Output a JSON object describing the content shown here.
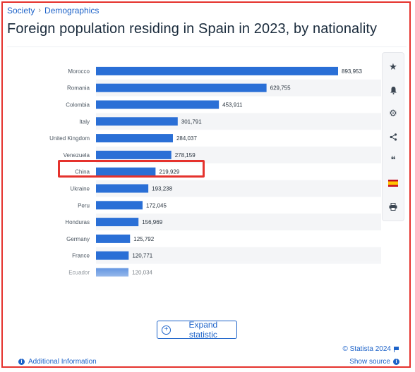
{
  "breadcrumb": {
    "first": "Society",
    "separator": "›",
    "second": "Demographics"
  },
  "title": "Foreign population residing in Spain in 2023, by nationality",
  "chart_data": {
    "type": "bar",
    "orientation": "horizontal",
    "title": "Foreign population residing in Spain in 2023, by nationality",
    "categories": [
      "Morocco",
      "Romania",
      "Colombia",
      "Italy",
      "United Kingdom",
      "Venezuela",
      "China",
      "Ukraine",
      "Peru",
      "Honduras",
      "Germany",
      "France",
      "Ecuador"
    ],
    "values": [
      893953,
      629755,
      453911,
      301791,
      284037,
      278159,
      219929,
      193238,
      172045,
      156969,
      125792,
      120771,
      120034
    ],
    "value_labels": [
      "893,953",
      "629,755",
      "453,911",
      "301,791",
      "284,037",
      "278,159",
      "219,929",
      "193,238",
      "172,045",
      "156,969",
      "125,792",
      "120,771",
      "120,034"
    ],
    "highlighted": "China",
    "bar_color": "#2a6fd6",
    "grid": false,
    "xlim": [
      0,
      893953
    ]
  },
  "toolbar": {
    "items": [
      {
        "name": "star-icon",
        "glyph": "★"
      },
      {
        "name": "bell-icon",
        "glyph": "🔔"
      },
      {
        "name": "gear-icon",
        "glyph": "⚙"
      },
      {
        "name": "share-icon",
        "glyph": "<"
      },
      {
        "name": "quote-icon",
        "glyph": "❝"
      },
      {
        "name": "spain-flag-icon",
        "glyph": ""
      },
      {
        "name": "print-icon",
        "glyph": "⎙"
      }
    ]
  },
  "expand_label": "Expand statistic",
  "copyright": "© Statista 2024",
  "show_source": "Show source",
  "additional_info": "Additional Information",
  "colors": {
    "accent": "#1d63c9",
    "highlight_border": "#e5322d"
  }
}
